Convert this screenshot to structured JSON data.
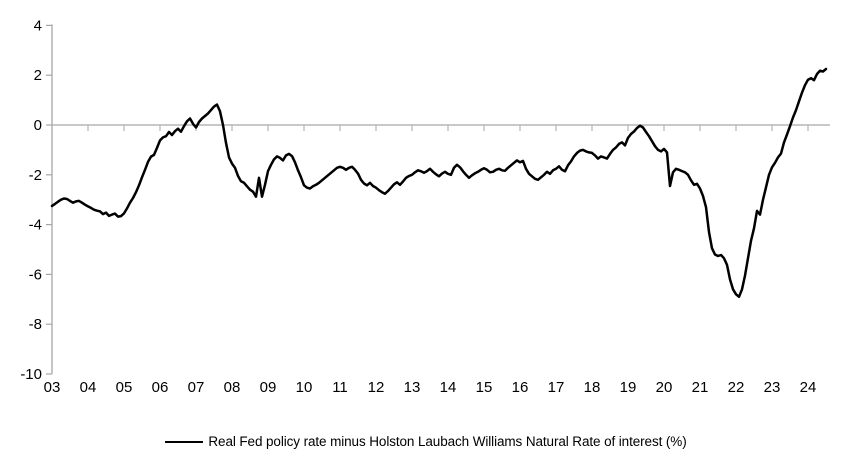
{
  "chart_data": {
    "type": "line",
    "title": "",
    "xlabel": "",
    "ylabel": "",
    "grid": false,
    "legend_position": "bottom-center",
    "line_color": "#000000",
    "axis_color": "#a6a6a6",
    "tick_color": "#b3b3b3",
    "ylim": [
      -10,
      4
    ],
    "y_ticks": [
      4,
      2,
      0,
      -2,
      -4,
      -6,
      -8,
      -10
    ],
    "x_tick_labels": [
      "03",
      "04",
      "05",
      "06",
      "07",
      "08",
      "09",
      "10",
      "11",
      "12",
      "13",
      "14",
      "15",
      "16",
      "17",
      "18",
      "19",
      "20",
      "21",
      "22",
      "23",
      "24"
    ],
    "zero_axis": true,
    "series": [
      {
        "name": "Real Fed policy rate minus Holston Laubach Williams Natural Rate of interest (%)",
        "start_year": 2003,
        "frequency": "monthly",
        "values": [
          -3.25,
          -3.17,
          -3.08,
          -3.0,
          -2.95,
          -2.97,
          -3.05,
          -3.12,
          -3.07,
          -3.05,
          -3.12,
          -3.2,
          -3.27,
          -3.33,
          -3.4,
          -3.44,
          -3.47,
          -3.58,
          -3.52,
          -3.65,
          -3.6,
          -3.56,
          -3.68,
          -3.66,
          -3.55,
          -3.35,
          -3.12,
          -2.93,
          -2.7,
          -2.42,
          -2.1,
          -1.8,
          -1.48,
          -1.27,
          -1.2,
          -0.92,
          -0.62,
          -0.5,
          -0.45,
          -0.28,
          -0.4,
          -0.25,
          -0.15,
          -0.27,
          -0.05,
          0.15,
          0.26,
          0.05,
          -0.1,
          0.12,
          0.26,
          0.36,
          0.46,
          0.6,
          0.74,
          0.82,
          0.55,
          0.0,
          -0.72,
          -1.3,
          -1.55,
          -1.72,
          -2.05,
          -2.26,
          -2.32,
          -2.46,
          -2.6,
          -2.68,
          -2.88,
          -2.12,
          -2.88,
          -2.4,
          -1.85,
          -1.6,
          -1.38,
          -1.26,
          -1.32,
          -1.42,
          -1.22,
          -1.16,
          -1.25,
          -1.5,
          -1.82,
          -2.1,
          -2.42,
          -2.52,
          -2.55,
          -2.46,
          -2.4,
          -2.32,
          -2.22,
          -2.12,
          -2.02,
          -1.92,
          -1.82,
          -1.72,
          -1.68,
          -1.72,
          -1.8,
          -1.72,
          -1.68,
          -1.8,
          -1.95,
          -2.2,
          -2.35,
          -2.42,
          -2.32,
          -2.45,
          -2.52,
          -2.62,
          -2.7,
          -2.76,
          -2.65,
          -2.52,
          -2.38,
          -2.3,
          -2.4,
          -2.27,
          -2.12,
          -2.05,
          -2.0,
          -1.9,
          -1.82,
          -1.86,
          -1.92,
          -1.85,
          -1.76,
          -1.88,
          -1.98,
          -2.06,
          -1.95,
          -1.88,
          -1.96,
          -2.0,
          -1.72,
          -1.6,
          -1.7,
          -1.86,
          -2.0,
          -2.12,
          -2.02,
          -1.94,
          -1.88,
          -1.8,
          -1.74,
          -1.8,
          -1.9,
          -1.88,
          -1.8,
          -1.76,
          -1.82,
          -1.84,
          -1.72,
          -1.62,
          -1.52,
          -1.42,
          -1.5,
          -1.44,
          -1.76,
          -1.96,
          -2.06,
          -2.16,
          -2.2,
          -2.1,
          -2.0,
          -1.88,
          -1.96,
          -1.82,
          -1.76,
          -1.66,
          -1.8,
          -1.86,
          -1.62,
          -1.46,
          -1.26,
          -1.12,
          -1.03,
          -1.0,
          -1.06,
          -1.1,
          -1.12,
          -1.22,
          -1.35,
          -1.26,
          -1.3,
          -1.35,
          -1.16,
          -1.0,
          -0.9,
          -0.76,
          -0.7,
          -0.82,
          -0.52,
          -0.36,
          -0.26,
          -0.12,
          -0.03,
          -0.1,
          -0.28,
          -0.45,
          -0.65,
          -0.85,
          -1.0,
          -1.06,
          -0.96,
          -1.1,
          -2.45,
          -1.9,
          -1.76,
          -1.8,
          -1.85,
          -1.9,
          -2.0,
          -2.22,
          -2.4,
          -2.36,
          -2.55,
          -2.85,
          -3.3,
          -4.3,
          -4.95,
          -5.2,
          -5.26,
          -5.22,
          -5.35,
          -5.62,
          -6.2,
          -6.6,
          -6.8,
          -6.9,
          -6.6,
          -6.05,
          -5.35,
          -4.65,
          -4.15,
          -3.45,
          -3.6,
          -3.0,
          -2.5,
          -2.0,
          -1.7,
          -1.52,
          -1.3,
          -1.15,
          -0.7,
          -0.38,
          -0.05,
          0.3,
          0.6,
          0.95,
          1.3,
          1.6,
          1.82,
          1.88,
          1.8,
          2.05,
          2.18,
          2.15,
          2.25
        ]
      }
    ]
  },
  "legend": {
    "label": "Real Fed policy rate minus Holston Laubach Williams Natural Rate of interest (%)"
  }
}
